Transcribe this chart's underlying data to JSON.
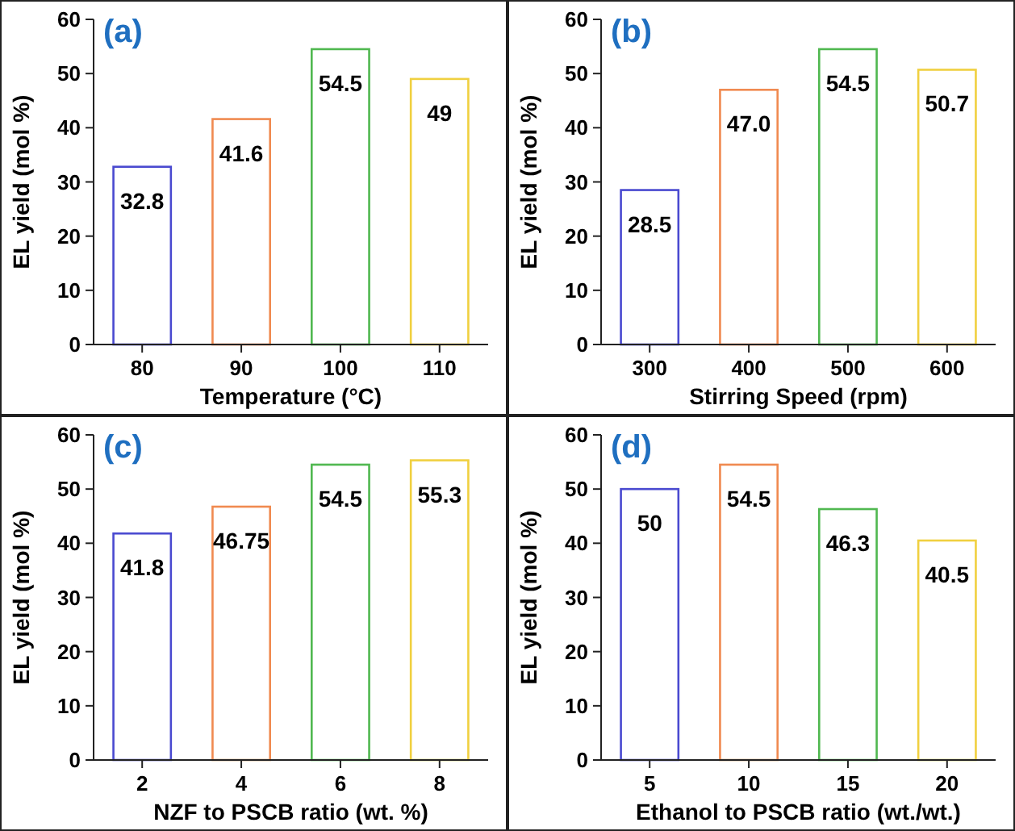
{
  "chart_data": [
    {
      "type": "bar",
      "title": "(a)",
      "xlabel": "Temperature (°C)",
      "ylabel": "EL yield (mol %)",
      "categories": [
        "80",
        "90",
        "100",
        "110"
      ],
      "values": [
        32.8,
        41.6,
        54.5,
        49
      ],
      "colors": [
        "#4a4ad0",
        "#f08a50",
        "#50b850",
        "#f0d040"
      ],
      "ylim": [
        0,
        60
      ],
      "yticks": [
        0,
        10,
        20,
        30,
        40,
        50,
        60
      ],
      "data_labels": true
    },
    {
      "type": "bar",
      "title": "(b)",
      "xlabel": "Stirring Speed (rpm)",
      "ylabel": "EL yield (mol %)",
      "categories": [
        "300",
        "400",
        "500",
        "600"
      ],
      "values": [
        28.5,
        47.0,
        54.5,
        50.7
      ],
      "value_labels": [
        "28.5",
        "47.0",
        "54.5",
        "50.7"
      ],
      "colors": [
        "#4a4ad0",
        "#f08a50",
        "#50b850",
        "#f0d040"
      ],
      "ylim": [
        0,
        60
      ],
      "yticks": [
        0,
        10,
        20,
        30,
        40,
        50,
        60
      ]
    },
    {
      "type": "bar",
      "title": "(c)",
      "xlabel": "NZF to PSCB ratio (wt. %)",
      "ylabel": "EL yield (mol %)",
      "categories": [
        "2",
        "4",
        "6",
        "8"
      ],
      "values": [
        41.8,
        46.75,
        54.5,
        55.3
      ],
      "colors": [
        "#4a4ad0",
        "#f08a50",
        "#50b850",
        "#f0d040"
      ],
      "ylim": [
        0,
        60
      ],
      "yticks": [
        0,
        10,
        20,
        30,
        40,
        50,
        60
      ],
      "data_labels": true
    },
    {
      "type": "bar",
      "title": "(d)",
      "xlabel": "Ethanol to PSCB ratio (wt./wt.)",
      "ylabel": "EL yield (mol %)",
      "categories": [
        "5",
        "10",
        "15",
        "20"
      ],
      "values": [
        50,
        54.5,
        46.3,
        40.5
      ],
      "colors": [
        "#4a4ad0",
        "#f08a50",
        "#50b850",
        "#f0d040"
      ],
      "ylim": [
        0,
        60
      ],
      "yticks": [
        0,
        10,
        20,
        30,
        40,
        50,
        60
      ],
      "data_labels": true
    }
  ]
}
